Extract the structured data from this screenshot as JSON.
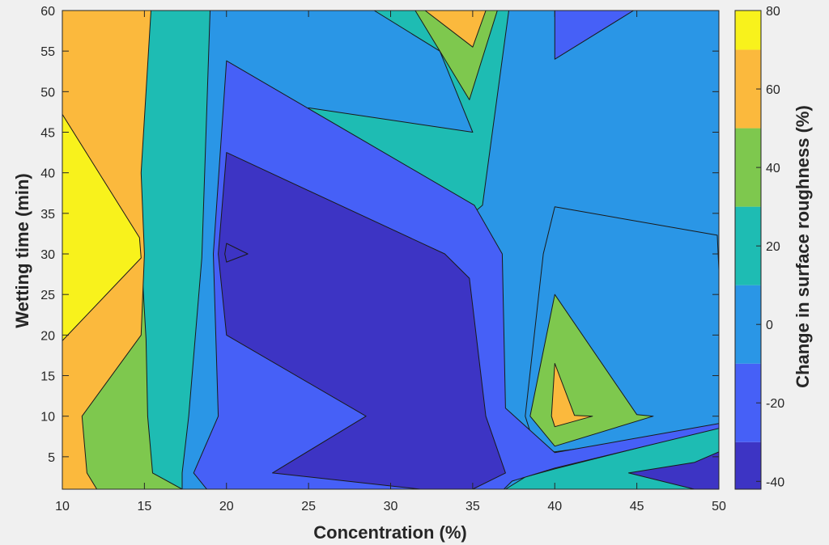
{
  "chart_data": {
    "type": "contour",
    "title": "",
    "xlabel": "Concentration (%)",
    "ylabel": "Wetting time (min)",
    "colorbar_label": "Change in surface roughness (%)",
    "xlim": [
      10,
      50
    ],
    "ylim": [
      1,
      60
    ],
    "xticks": [
      10,
      15,
      20,
      25,
      30,
      35,
      40,
      45,
      50
    ],
    "yticks": [
      5,
      10,
      15,
      20,
      25,
      30,
      35,
      40,
      45,
      50,
      55,
      60
    ],
    "clim": [
      -42,
      80
    ],
    "colorbar_ticks": [
      -40,
      -20,
      0,
      20,
      40,
      60,
      80
    ],
    "grid": false,
    "colormap": "parula",
    "level_colors": {
      "minus_40_to_minus_30": "#3d34c4",
      "minus_30_to_minus_10": "#4660f7",
      "minus_10_to_10": "#2a96e6",
      "10_to_30": "#1ebcb3",
      "30_to_50": "#7ec84e",
      "50_to_70": "#fbb93d",
      "above_70": "#f8f21c"
    },
    "regions": [
      {
        "level": "10_to_30",
        "outline": [
          [
            10,
            1
          ],
          [
            50,
            1
          ],
          [
            50,
            60
          ],
          [
            10,
            60
          ]
        ]
      },
      {
        "level": "minus_10_to_10",
        "outline": [
          [
            17.3,
            1
          ],
          [
            37,
            1
          ],
          [
            38.2,
            2.5
          ],
          [
            40,
            3.5
          ],
          [
            50,
            8.6
          ],
          [
            50,
            28
          ],
          [
            49.9,
            32.3
          ],
          [
            40,
            35.8
          ],
          [
            39.3,
            30
          ],
          [
            38.2,
            10
          ],
          [
            38.8,
            6.2
          ],
          [
            40,
            5.6
          ],
          [
            47,
            7.5
          ],
          [
            50,
            9
          ],
          [
            50,
            60
          ],
          [
            37.2,
            60
          ],
          [
            35.6,
            36
          ],
          [
            31,
            28
          ],
          [
            26,
            25
          ],
          [
            22,
            24
          ],
          [
            20.5,
            30
          ],
          [
            22,
            44
          ],
          [
            25,
            48
          ],
          [
            35,
            45
          ],
          [
            33,
            55
          ],
          [
            29,
            60
          ],
          [
            19,
            60
          ],
          [
            18.5,
            29.5
          ],
          [
            17.7,
            10
          ],
          [
            17.3,
            3
          ]
        ]
      },
      {
        "level": "minus_30_to_minus_10",
        "outline": [
          [
            18.8,
            1
          ],
          [
            36.9,
            1
          ],
          [
            37.4,
            2
          ],
          [
            40,
            3.6
          ],
          [
            50,
            8.5
          ],
          [
            50,
            9.1
          ],
          [
            40,
            5.5
          ],
          [
            37,
            11
          ],
          [
            36.8,
            30
          ],
          [
            35.1,
            36
          ],
          [
            20,
            53.8
          ],
          [
            19.2,
            30
          ],
          [
            19.5,
            10
          ],
          [
            18,
            3
          ]
        ]
      },
      {
        "level": "minus_40_to_minus_30",
        "outline": [
          [
            31.8,
            1
          ],
          [
            35,
            1
          ],
          [
            37,
            3
          ],
          [
            35.8,
            10
          ],
          [
            34.8,
            27
          ],
          [
            33.3,
            30
          ],
          [
            20,
            42.5
          ],
          [
            19.5,
            30
          ],
          [
            20,
            20
          ],
          [
            28.5,
            10
          ],
          [
            22.8,
            3
          ]
        ]
      },
      {
        "level": "minus_40_to_minus_30",
        "outline": [
          [
            50,
            1
          ],
          [
            48.5,
            1
          ],
          [
            44.5,
            3
          ],
          [
            48.5,
            4.3
          ],
          [
            50,
            5.6
          ]
        ]
      },
      {
        "level": "minus_30_to_minus_10",
        "outline": [
          [
            40,
            54
          ],
          [
            40,
            60
          ],
          [
            44.8,
            60
          ]
        ]
      },
      {
        "level": "30_to_50",
        "outline": [
          [
            10,
            1
          ],
          [
            17.3,
            1
          ],
          [
            15.5,
            3
          ],
          [
            15.2,
            10
          ],
          [
            15.1,
            19.5
          ],
          [
            14.8,
            30
          ],
          [
            14.7,
            40
          ],
          [
            15.3,
            60
          ],
          [
            10,
            60
          ],
          [
            10,
            8.5
          ]
        ]
      },
      {
        "level": "50_to_70",
        "outline": [
          [
            10,
            1
          ],
          [
            12.1,
            1
          ],
          [
            11.5,
            3
          ],
          [
            11.2,
            10
          ],
          [
            14.8,
            20
          ],
          [
            15,
            30
          ],
          [
            14.8,
            40
          ],
          [
            15.4,
            60
          ],
          [
            10,
            60
          ]
        ]
      },
      {
        "level": "above_70",
        "outline": [
          [
            10,
            19.3
          ],
          [
            10,
            47.2
          ],
          [
            14.7,
            32
          ],
          [
            14.8,
            29.5
          ]
        ]
      },
      {
        "level": "30_to_50",
        "outline": [
          [
            40,
            25
          ],
          [
            38.5,
            10
          ],
          [
            40,
            6.3
          ],
          [
            46,
            10
          ],
          [
            45,
            10.2
          ]
        ]
      },
      {
        "level": "50_to_70",
        "outline": [
          [
            40,
            16.5
          ],
          [
            39.8,
            10
          ],
          [
            40,
            8.7
          ],
          [
            42.3,
            10
          ],
          [
            41.2,
            10.1
          ]
        ]
      },
      {
        "level": "30_to_50",
        "outline": [
          [
            31.5,
            60
          ],
          [
            34.8,
            49
          ],
          [
            36.5,
            60
          ]
        ]
      },
      {
        "level": "50_to_70",
        "outline": [
          [
            32.1,
            60
          ],
          [
            35,
            55.5
          ],
          [
            35.8,
            60
          ]
        ]
      },
      {
        "level": "minus_40_to_minus_30",
        "outline": [
          [
            20,
            29
          ],
          [
            21.3,
            30
          ],
          [
            20,
            31.3
          ],
          [
            19.9,
            30
          ]
        ]
      }
    ]
  }
}
